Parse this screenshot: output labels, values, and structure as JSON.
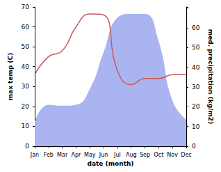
{
  "chart_data": {
    "type": "line",
    "x_label": "date (month)",
    "y_label": "max temp (C)",
    "y2_label": "med. precipitation (kg/m2)",
    "categories": [
      "Jan",
      "Feb",
      "Mar",
      "Apr",
      "May",
      "Jun",
      "Jul",
      "Aug",
      "Sep",
      "Oct",
      "Nov",
      "Dec"
    ],
    "series": [
      {
        "name": "med. precipitation",
        "type": "area",
        "axis": "y2",
        "color": "#aab4f0",
        "values": [
          12.4,
          21,
          20.5,
          21,
          29,
          47.6,
          65,
          67,
          67,
          53,
          23,
          13.4
        ]
      },
      {
        "name": "max temp",
        "type": "line",
        "color": "#c65a5a",
        "values": [
          36,
          45,
          48,
          60,
          66.5,
          66,
          38,
          31,
          34,
          34,
          36,
          36
        ]
      }
    ],
    "ylim": [
      0,
      70
    ],
    "yticks": [
      0,
      10,
      20,
      30,
      40,
      50,
      60,
      70
    ],
    "y2lim": [
      0,
      70.5
    ],
    "y2ticks": [
      0,
      10,
      20,
      30,
      40,
      50,
      60
    ],
    "grid": false
  }
}
